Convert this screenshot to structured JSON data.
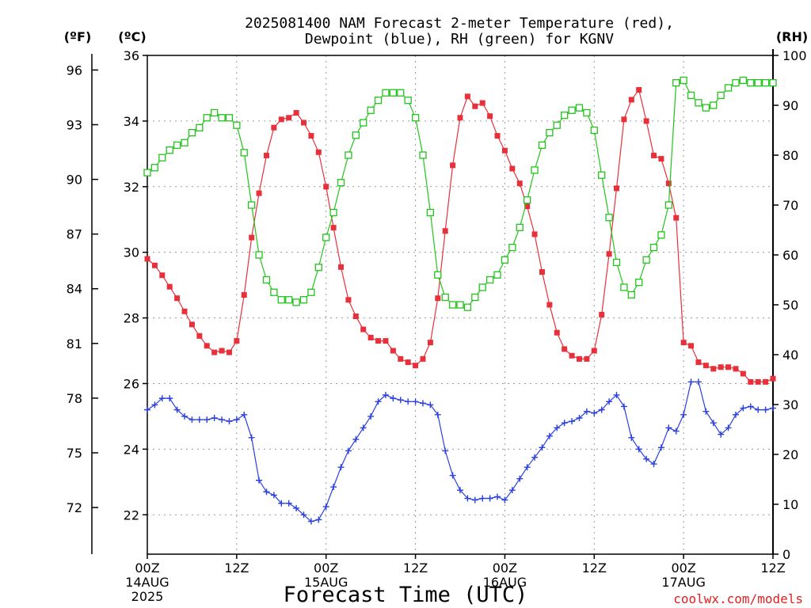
{
  "title_line1": "2025081400 NAM Forecast 2-meter Temperature (red),",
  "title_line2": "Dewpoint (blue), RH (green) for KGNV",
  "unit_f": "(ºF)",
  "unit_c": "(ºC)",
  "unit_rh": "(RH)",
  "x_axis_title": "Forecast Time (UTC)",
  "credit": "coolwx.com/models",
  "x_ticks": [
    {
      "h": 0,
      "l1": "00Z",
      "l2": "14AUG",
      "l3": "2025"
    },
    {
      "h": 12,
      "l1": "12Z",
      "l2": "",
      "l3": ""
    },
    {
      "h": 24,
      "l1": "00Z",
      "l2": "15AUG",
      "l3": ""
    },
    {
      "h": 36,
      "l1": "12Z",
      "l2": "",
      "l3": ""
    },
    {
      "h": 48,
      "l1": "00Z",
      "l2": "16AUG",
      "l3": ""
    },
    {
      "h": 60,
      "l1": "12Z",
      "l2": "",
      "l3": ""
    },
    {
      "h": 72,
      "l1": "00Z",
      "l2": "17AUG",
      "l3": ""
    },
    {
      "h": 84,
      "l1": "12Z",
      "l2": "",
      "l3": ""
    }
  ],
  "chart_data": {
    "type": "line",
    "x_unit": "forecast hour (UTC) from 2025-08-14 00Z",
    "xlim": [
      0,
      84
    ],
    "ylim_c": [
      20.8,
      36
    ],
    "ylim_rh": [
      0,
      100
    ],
    "f_ticks": [
      72,
      75,
      78,
      81,
      84,
      87,
      90,
      93,
      96
    ],
    "c_ticks": [
      22,
      24,
      26,
      28,
      30,
      32,
      34,
      36
    ],
    "rh_ticks": [
      0,
      10,
      20,
      30,
      40,
      50,
      60,
      70,
      80,
      90,
      100
    ],
    "grid": true,
    "series": [
      {
        "name": "Temperature",
        "color": "#e8303a",
        "axis": "c",
        "marker": "square",
        "x": [
          0,
          1,
          2,
          3,
          4,
          5,
          6,
          7,
          8,
          9,
          10,
          11,
          12,
          13,
          14,
          15,
          16,
          17,
          18,
          19,
          20,
          21,
          22,
          23,
          24,
          25,
          26,
          27,
          28,
          29,
          30,
          31,
          32,
          33,
          34,
          35,
          36,
          37,
          38,
          39,
          40,
          41,
          42,
          43,
          44,
          45,
          46,
          47,
          48,
          49,
          50,
          51,
          52,
          53,
          54,
          55,
          56,
          57,
          58,
          59,
          60,
          61,
          62,
          63,
          64,
          65,
          66,
          67,
          68,
          69,
          70,
          71,
          72,
          73,
          74,
          75,
          76,
          77,
          78,
          79,
          80,
          81,
          82,
          83,
          84
        ],
        "y": [
          29.8,
          29.6,
          29.3,
          28.95,
          28.6,
          28.2,
          27.8,
          27.45,
          27.15,
          26.95,
          27.0,
          26.95,
          27.3,
          28.7,
          30.45,
          31.8,
          32.95,
          33.8,
          34.05,
          34.1,
          34.25,
          33.95,
          33.55,
          33.05,
          32.0,
          30.75,
          29.55,
          28.55,
          28.05,
          27.65,
          27.4,
          27.3,
          27.3,
          27.0,
          26.75,
          26.65,
          26.55,
          26.75,
          27.25,
          28.6,
          30.65,
          32.65,
          34.1,
          34.75,
          34.45,
          34.55,
          34.15,
          33.55,
          33.1,
          32.55,
          32.1,
          31.4,
          30.55,
          29.4,
          28.4,
          27.55,
          27.05,
          26.85,
          26.75,
          26.75,
          27.0,
          28.1,
          29.95,
          31.95,
          34.05,
          34.65,
          34.95,
          34.0,
          32.95,
          32.85,
          32.1,
          31.05,
          27.25,
          27.15,
          26.65,
          26.55,
          26.45,
          26.5,
          26.5,
          26.45,
          26.3,
          26.05,
          26.05,
          26.05,
          26.15
        ]
      },
      {
        "name": "Dewpoint",
        "color": "#2a3fe0",
        "axis": "c",
        "marker": "plus",
        "x": [
          0,
          1,
          2,
          3,
          4,
          5,
          6,
          7,
          8,
          9,
          10,
          11,
          12,
          13,
          14,
          15,
          16,
          17,
          18,
          19,
          20,
          21,
          22,
          23,
          24,
          25,
          26,
          27,
          28,
          29,
          30,
          31,
          32,
          33,
          34,
          35,
          36,
          37,
          38,
          39,
          40,
          41,
          42,
          43,
          44,
          45,
          46,
          47,
          48,
          49,
          50,
          51,
          52,
          53,
          54,
          55,
          56,
          57,
          58,
          59,
          60,
          61,
          62,
          63,
          64,
          65,
          66,
          67,
          68,
          69,
          70,
          71,
          72,
          73,
          74,
          75,
          76,
          77,
          78,
          79,
          80,
          81,
          82,
          83,
          84
        ],
        "y": [
          25.2,
          25.35,
          25.55,
          25.55,
          25.2,
          25.0,
          24.9,
          24.9,
          24.9,
          24.95,
          24.9,
          24.85,
          24.9,
          25.05,
          24.35,
          23.05,
          22.7,
          22.6,
          22.35,
          22.35,
          22.2,
          22.0,
          21.8,
          21.85,
          22.25,
          22.85,
          23.45,
          23.95,
          24.3,
          24.65,
          25.0,
          25.45,
          25.65,
          25.55,
          25.5,
          25.45,
          25.45,
          25.4,
          25.35,
          25.05,
          23.95,
          23.2,
          22.75,
          22.5,
          22.45,
          22.5,
          22.5,
          22.55,
          22.45,
          22.75,
          23.1,
          23.45,
          23.75,
          24.05,
          24.4,
          24.65,
          24.8,
          24.85,
          24.95,
          25.15,
          25.1,
          25.2,
          25.45,
          25.65,
          25.3,
          24.35,
          24.0,
          23.7,
          23.55,
          24.05,
          24.65,
          24.55,
          25.05,
          26.05,
          26.05,
          25.15,
          24.8,
          24.45,
          24.65,
          25.05,
          25.25,
          25.3,
          25.2,
          25.2,
          25.25
        ]
      },
      {
        "name": "RH",
        "color": "#22c41c",
        "axis": "rh",
        "marker": "open-square",
        "x": [
          0,
          1,
          2,
          3,
          4,
          5,
          6,
          7,
          8,
          9,
          10,
          11,
          12,
          13,
          14,
          15,
          16,
          17,
          18,
          19,
          20,
          21,
          22,
          23,
          24,
          25,
          26,
          27,
          28,
          29,
          30,
          31,
          32,
          33,
          34,
          35,
          36,
          37,
          38,
          39,
          40,
          41,
          42,
          43,
          44,
          45,
          46,
          47,
          48,
          49,
          50,
          51,
          52,
          53,
          54,
          55,
          56,
          57,
          58,
          59,
          60,
          61,
          62,
          63,
          64,
          65,
          66,
          67,
          68,
          69,
          70,
          71,
          72,
          73,
          74,
          75,
          76,
          77,
          78,
          79,
          80,
          81,
          82,
          83,
          84
        ],
        "y": [
          76.5,
          77.5,
          79.5,
          81.0,
          82.0,
          82.5,
          84.5,
          85.5,
          87.5,
          88.5,
          87.5,
          87.5,
          86.0,
          80.5,
          70.0,
          60.0,
          55.0,
          52.5,
          51.0,
          51.0,
          50.5,
          51.0,
          52.5,
          57.5,
          63.5,
          68.5,
          74.5,
          80.0,
          84.0,
          86.5,
          89.0,
          91.0,
          92.5,
          92.5,
          92.5,
          91.0,
          87.5,
          80.0,
          68.5,
          56.0,
          51.5,
          50.0,
          50.0,
          49.5,
          51.5,
          53.5,
          55.0,
          56.0,
          59.0,
          61.5,
          65.5,
          71.0,
          77.0,
          82.0,
          84.5,
          86.0,
          88.0,
          89.0,
          89.5,
          88.5,
          85.0,
          76.0,
          67.5,
          58.5,
          53.5,
          52.0,
          54.5,
          59.0,
          61.5,
          64.0,
          70.0,
          94.5,
          95.0,
          92.0,
          90.5,
          89.5,
          90.0,
          92.0,
          93.5,
          94.5,
          95.0,
          94.5,
          94.5,
          94.5,
          94.5
        ]
      }
    ]
  }
}
